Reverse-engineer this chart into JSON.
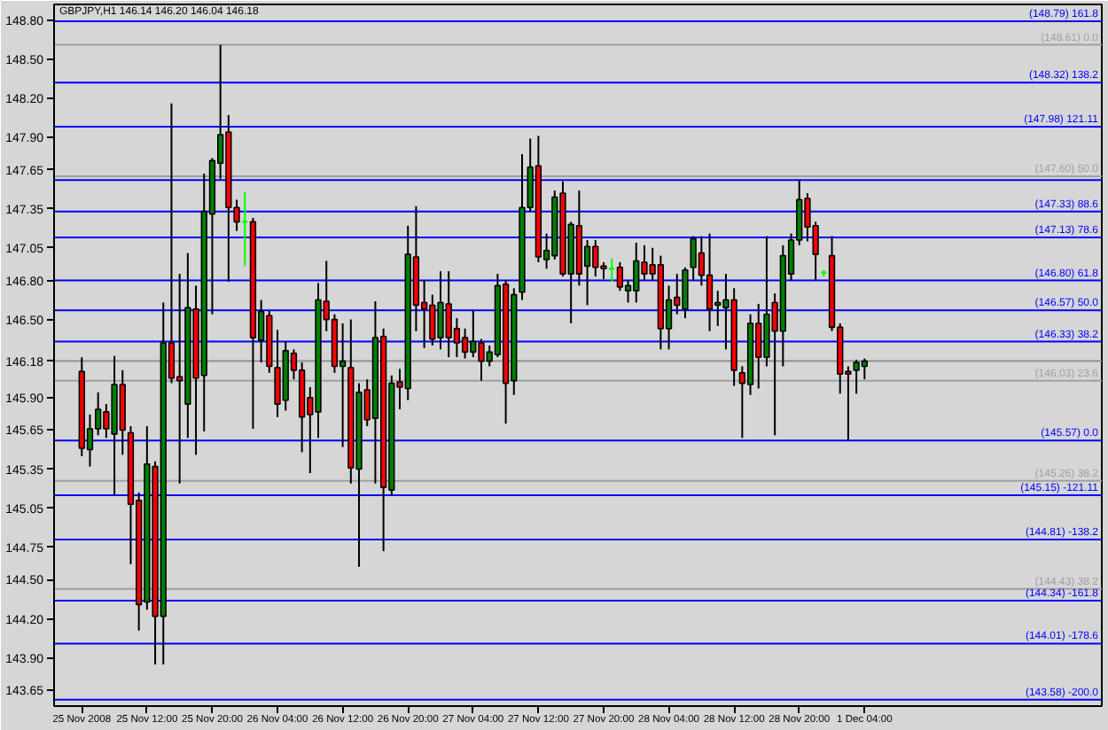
{
  "chart_data": {
    "type": "candlestick",
    "title": "GBPJPY,H1 146.14 146.20 146.04 146.18",
    "categories": [
      "25 Nov 2008",
      null,
      null,
      null,
      null,
      null,
      null,
      null,
      "25 Nov 12:00",
      null,
      null,
      null,
      null,
      null,
      null,
      null,
      "25 Nov 20:00",
      null,
      null,
      null,
      null,
      null,
      null,
      null,
      "26 Nov 04:00",
      null,
      null,
      null,
      null,
      null,
      null,
      null,
      "26 Nov 12:00",
      null,
      null,
      null,
      null,
      null,
      null,
      null,
      "26 Nov 20:00",
      null,
      null,
      null,
      null,
      null,
      null,
      null,
      "27 Nov 04:00",
      null,
      null,
      null,
      null,
      null,
      null,
      null,
      "27 Nov 12:00",
      null,
      null,
      null,
      null,
      null,
      null,
      null,
      "27 Nov 20:00",
      null,
      null,
      null,
      null,
      null,
      null,
      null,
      "28 Nov 04:00",
      null,
      null,
      null,
      null,
      null,
      null,
      null,
      "28 Nov 12:00",
      null,
      null,
      null,
      null,
      null,
      null,
      null,
      "28 Nov 20:00",
      null,
      null,
      null,
      null,
      null,
      null,
      null,
      "1 Dec 04:00"
    ],
    "ohlc": [
      [
        146.1,
        146.21,
        145.45,
        145.51
      ],
      [
        145.5,
        145.77,
        145.37,
        145.66
      ],
      [
        145.66,
        145.94,
        145.61,
        145.81
      ],
      [
        145.79,
        145.85,
        145.59,
        145.66
      ],
      [
        145.62,
        146.22,
        145.15,
        146.0
      ],
      [
        146.0,
        146.11,
        145.46,
        145.65
      ],
      [
        145.63,
        145.68,
        144.62,
        145.08
      ],
      [
        145.11,
        145.17,
        144.11,
        144.31
      ],
      [
        144.33,
        145.68,
        144.27,
        145.39
      ],
      [
        145.37,
        145.41,
        143.85,
        144.22
      ],
      [
        144.22,
        146.63,
        143.85,
        146.32
      ],
      [
        146.32,
        148.16,
        146.01,
        146.05
      ],
      [
        146.06,
        146.85,
        145.24,
        146.03
      ],
      [
        145.85,
        147.01,
        145.59,
        146.59
      ],
      [
        146.58,
        146.76,
        145.46,
        146.05
      ],
      [
        146.07,
        147.62,
        145.64,
        147.33
      ],
      [
        147.31,
        147.74,
        146.54,
        147.72
      ],
      [
        147.7,
        148.61,
        147.58,
        147.92
      ],
      [
        147.94,
        148.07,
        146.79,
        147.36
      ],
      [
        147.36,
        147.42,
        147.18,
        147.25
      ],
      [
        147.25,
        147.48,
        146.91,
        147.25
      ],
      [
        147.25,
        147.28,
        145.66,
        146.36
      ],
      [
        146.34,
        146.65,
        146.17,
        146.56
      ],
      [
        146.53,
        146.57,
        146.09,
        146.14
      ],
      [
        146.13,
        146.42,
        145.75,
        145.85
      ],
      [
        145.88,
        146.33,
        145.8,
        146.26
      ],
      [
        146.24,
        146.27,
        146.04,
        146.11
      ],
      [
        146.11,
        146.17,
        145.48,
        145.75
      ],
      [
        145.9,
        145.98,
        145.32,
        145.77
      ],
      [
        145.79,
        146.78,
        145.59,
        146.65
      ],
      [
        146.64,
        146.95,
        146.41,
        146.5
      ],
      [
        146.5,
        146.54,
        146.09,
        146.14
      ],
      [
        146.14,
        146.47,
        145.52,
        146.18
      ],
      [
        146.13,
        146.5,
        145.24,
        145.36
      ],
      [
        145.35,
        146.01,
        144.6,
        145.94
      ],
      [
        145.96,
        146.04,
        145.68,
        145.73
      ],
      [
        145.74,
        146.64,
        145.24,
        146.36
      ],
      [
        146.37,
        146.43,
        144.72,
        145.21
      ],
      [
        145.19,
        146.07,
        145.15,
        146.01
      ],
      [
        146.02,
        146.12,
        145.81,
        145.98
      ],
      [
        145.97,
        147.22,
        145.88,
        147.0
      ],
      [
        146.98,
        147.37,
        146.41,
        146.61
      ],
      [
        146.63,
        146.8,
        146.28,
        146.58
      ],
      [
        146.61,
        146.69,
        146.3,
        146.35
      ],
      [
        146.36,
        146.87,
        146.27,
        146.63
      ],
      [
        146.62,
        146.87,
        146.21,
        146.36
      ],
      [
        146.43,
        146.51,
        146.21,
        146.32
      ],
      [
        146.36,
        146.43,
        146.2,
        146.25
      ],
      [
        146.25,
        146.57,
        146.21,
        146.33
      ],
      [
        146.32,
        146.35,
        146.03,
        146.18
      ],
      [
        146.18,
        146.3,
        146.14,
        146.25
      ],
      [
        146.23,
        146.85,
        146.21,
        146.76
      ],
      [
        146.77,
        146.8,
        145.7,
        146.01
      ],
      [
        146.03,
        146.74,
        145.92,
        146.69
      ],
      [
        146.71,
        147.77,
        146.65,
        147.36
      ],
      [
        147.36,
        147.89,
        147.33,
        147.67
      ],
      [
        147.68,
        147.91,
        146.94,
        146.98
      ],
      [
        146.96,
        147.16,
        146.89,
        147.03
      ],
      [
        146.99,
        147.49,
        146.96,
        147.44
      ],
      [
        147.47,
        147.56,
        146.83,
        146.85
      ],
      [
        146.85,
        147.25,
        146.47,
        147.23
      ],
      [
        147.22,
        147.49,
        146.76,
        146.85
      ],
      [
        146.91,
        147.11,
        146.61,
        147.06
      ],
      [
        147.06,
        147.11,
        146.83,
        146.9
      ],
      [
        146.91,
        146.94,
        146.81,
        146.89
      ],
      [
        146.89,
        146.97,
        146.79,
        146.89
      ],
      [
        146.9,
        146.94,
        146.72,
        146.75
      ],
      [
        146.72,
        146.8,
        146.63,
        146.76
      ],
      [
        146.72,
        147.09,
        146.63,
        146.95
      ],
      [
        146.94,
        147.07,
        146.8,
        146.85
      ],
      [
        146.92,
        147.05,
        146.8,
        146.85
      ],
      [
        146.92,
        146.99,
        146.27,
        146.43
      ],
      [
        146.43,
        146.76,
        146.27,
        146.65
      ],
      [
        146.67,
        146.85,
        146.54,
        146.61
      ],
      [
        146.58,
        146.9,
        146.51,
        146.88
      ],
      [
        146.9,
        147.14,
        146.8,
        147.12
      ],
      [
        147.01,
        147.14,
        146.76,
        146.84
      ],
      [
        146.84,
        147.16,
        146.41,
        146.58
      ],
      [
        146.61,
        146.72,
        146.45,
        146.63
      ],
      [
        146.59,
        146.85,
        146.27,
        146.65
      ],
      [
        146.65,
        146.74,
        145.99,
        146.11
      ],
      [
        146.09,
        146.14,
        145.59,
        146.01
      ],
      [
        146.0,
        146.54,
        145.92,
        146.47
      ],
      [
        146.47,
        146.62,
        145.97,
        146.21
      ],
      [
        146.21,
        147.14,
        146.14,
        146.54
      ],
      [
        146.63,
        146.7,
        145.61,
        146.41
      ],
      [
        146.41,
        147.07,
        146.14,
        146.99
      ],
      [
        146.85,
        147.16,
        146.8,
        147.11
      ],
      [
        147.11,
        147.57,
        147.07,
        147.42
      ],
      [
        147.43,
        147.47,
        147.1,
        147.21
      ],
      [
        147.22,
        147.25,
        146.8,
        147.0
      ],
      [
        146.86,
        146.88,
        146.83,
        146.86
      ],
      [
        146.99,
        147.14,
        146.41,
        146.44
      ],
      [
        146.44,
        146.47,
        145.93,
        146.08
      ],
      [
        146.1,
        146.14,
        145.57,
        146.08
      ],
      [
        146.11,
        146.19,
        145.93,
        146.17
      ],
      [
        146.14,
        146.2,
        146.04,
        146.18
      ]
    ],
    "colors": [
      "#ff0000",
      "#008000",
      "#008000",
      "#ff0000",
      "#008000",
      "#ff0000",
      "#ff0000",
      "#ff0000",
      "#008000",
      "#ff0000",
      "#008000",
      "#ff0000",
      "#ff0000",
      "#008000",
      "#ff0000",
      "#008000",
      "#008000",
      "#008000",
      "#ff0000",
      "#ff0000",
      "#00ff00",
      "#ff0000",
      "#008000",
      "#ff0000",
      "#ff0000",
      "#008000",
      "#ff0000",
      "#ff0000",
      "#ff0000",
      "#008000",
      "#ff0000",
      "#ff0000",
      "#008000",
      "#ff0000",
      "#008000",
      "#ff0000",
      "#008000",
      "#ff0000",
      "#008000",
      "#ff0000",
      "#008000",
      "#ff0000",
      "#ff0000",
      "#ff0000",
      "#008000",
      "#ff0000",
      "#ff0000",
      "#ff0000",
      "#008000",
      "#ff0000",
      "#008000",
      "#008000",
      "#ff0000",
      "#008000",
      "#008000",
      "#008000",
      "#ff0000",
      "#008000",
      "#008000",
      "#ff0000",
      "#008000",
      "#ff0000",
      "#008000",
      "#ff0000",
      "#ff0000",
      "#00ff00",
      "#ff0000",
      "#008000",
      "#008000",
      "#ff0000",
      "#ff0000",
      "#ff0000",
      "#008000",
      "#ff0000",
      "#008000",
      "#008000",
      "#ff0000",
      "#ff0000",
      "#008000",
      "#008000",
      "#ff0000",
      "#ff0000",
      "#008000",
      "#ff0000",
      "#008000",
      "#ff0000",
      "#008000",
      "#008000",
      "#008000",
      "#ff0000",
      "#ff0000",
      "#00ff00",
      "#ff0000",
      "#ff0000",
      "#ff0000",
      "#008000",
      "#008000"
    ],
    "color": "#000000",
    "ylim": [
      143.53,
      148.92
    ],
    "yticks": [
      {
        "value": 148.8,
        "label": "148.80"
      },
      {
        "value": 148.5,
        "label": "148.50"
      },
      {
        "value": 148.2,
        "label": "148.20"
      },
      {
        "value": 147.9,
        "label": "147.90"
      },
      {
        "value": 147.65,
        "label": "147.65"
      },
      {
        "value": 147.35,
        "label": "147.35"
      },
      {
        "value": 147.05,
        "label": "147.05"
      },
      {
        "value": 146.8,
        "label": "146.80"
      },
      {
        "value": 146.5,
        "label": "146.50"
      },
      {
        "value": 146.18,
        "label": "146.18"
      },
      {
        "value": 145.9,
        "label": "145.90"
      },
      {
        "value": 145.65,
        "label": "145.65"
      },
      {
        "value": 145.35,
        "label": "145.35"
      },
      {
        "value": 145.05,
        "label": "145.05"
      },
      {
        "value": 144.75,
        "label": "144.75"
      },
      {
        "value": 144.5,
        "label": "144.50"
      },
      {
        "value": 144.2,
        "label": "144.20"
      },
      {
        "value": 143.9,
        "label": "143.90"
      },
      {
        "value": 143.65,
        "label": "143.65"
      }
    ],
    "ref_lines": [
      {
        "axis": "y",
        "value": 148.61,
        "label": "(148.61) 0.0",
        "color": "#a0a0a0"
      },
      {
        "axis": "y",
        "value": 147.6,
        "label": "(147.60) 50.0",
        "color": "#a0a0a0"
      },
      {
        "axis": "y",
        "value": 146.18,
        "label": null,
        "color": "#909090"
      },
      {
        "axis": "y",
        "value": 146.03,
        "label": "(146.03) 23.6",
        "color": "#a0a0a0"
      },
      {
        "axis": "y",
        "value": 145.26,
        "label": "(145.26) 38.2",
        "color": "#a0a0a0"
      },
      {
        "axis": "y",
        "value": 144.43,
        "label": "(144.43) 38.2",
        "color": "#a0a0a0"
      },
      {
        "axis": "y",
        "value": 148.79,
        "label": "(148.79) 161.8",
        "color": "#0000ff"
      },
      {
        "axis": "y",
        "value": 148.32,
        "label": "(148.32) 138.2",
        "color": "#0000ff"
      },
      {
        "axis": "y",
        "value": 147.98,
        "label": "(147.98) 121.11",
        "color": "#0000ff"
      },
      {
        "axis": "y",
        "value": 147.57,
        "label": null,
        "color": "#0000ff"
      },
      {
        "axis": "y",
        "value": 147.33,
        "label": "(147.33) 88.6",
        "color": "#0000ff"
      },
      {
        "axis": "y",
        "value": 147.13,
        "label": "(147.13) 78.6",
        "color": "#0000ff"
      },
      {
        "axis": "y",
        "value": 146.8,
        "label": "(146.80) 61.8",
        "color": "#0000ff"
      },
      {
        "axis": "y",
        "value": 146.57,
        "label": "(146.57) 50.0",
        "color": "#0000ff"
      },
      {
        "axis": "y",
        "value": 146.33,
        "label": "(146.33) 38.2",
        "color": "#0000ff"
      },
      {
        "axis": "y",
        "value": 145.57,
        "label": "(145.57) 0.0",
        "color": "#0000ff"
      },
      {
        "axis": "y",
        "value": 145.15,
        "label": "(145.15) -121.11",
        "color": "#0000ff"
      },
      {
        "axis": "y",
        "value": 144.81,
        "label": "(144.81) -138.2",
        "color": "#0000ff"
      },
      {
        "axis": "y",
        "value": 144.34,
        "label": "(144.34) -161.8",
        "color": "#0000ff"
      },
      {
        "axis": "y",
        "value": 144.01,
        "label": "(144.01) -178.6",
        "color": "#0000ff"
      },
      {
        "axis": "y",
        "value": 143.58,
        "label": "(143.58) -200.0",
        "color": "#0000ff"
      }
    ]
  }
}
